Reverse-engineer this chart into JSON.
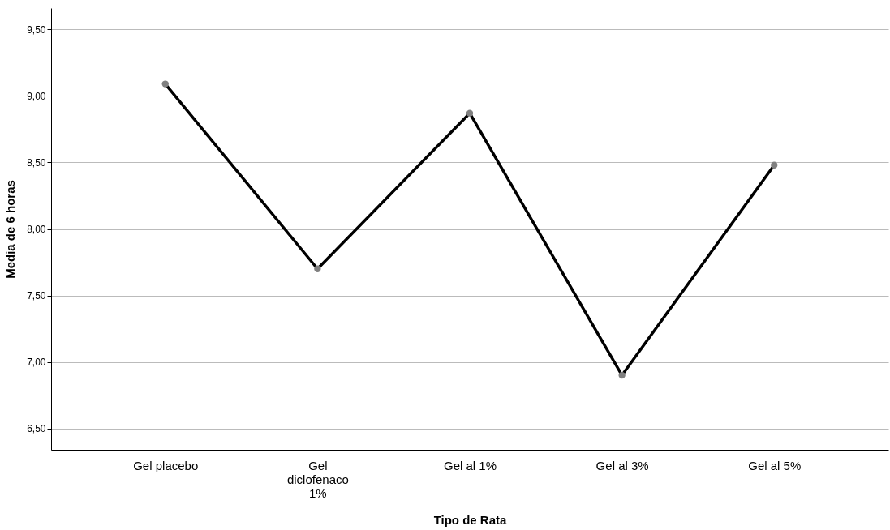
{
  "chart_data": {
    "type": "line",
    "xlabel": "Tipo de Rata",
    "ylabel": "Media de 6 horas",
    "categories": [
      "Gel placebo",
      "Gel diclofenaco 1%",
      "Gel al 1%",
      "Gel al 3%",
      "Gel al 5%"
    ],
    "series": [
      {
        "color": "#000000",
        "values": [
          9.09,
          7.7,
          8.87,
          6.9,
          8.48
        ]
      }
    ],
    "ylim": [
      6.34,
      9.66
    ],
    "yticks": [
      {
        "value": 6.5,
        "label": "6,50"
      },
      {
        "value": 7.0,
        "label": "7,00"
      },
      {
        "value": 7.5,
        "label": "7,50"
      },
      {
        "value": 8.0,
        "label": "8,00"
      },
      {
        "value": 8.5,
        "label": "8,50"
      },
      {
        "value": 9.0,
        "label": "9,00"
      },
      {
        "value": 9.5,
        "label": "9,50"
      }
    ],
    "grid": "y",
    "marker": "circle",
    "line_style": "solid"
  }
}
